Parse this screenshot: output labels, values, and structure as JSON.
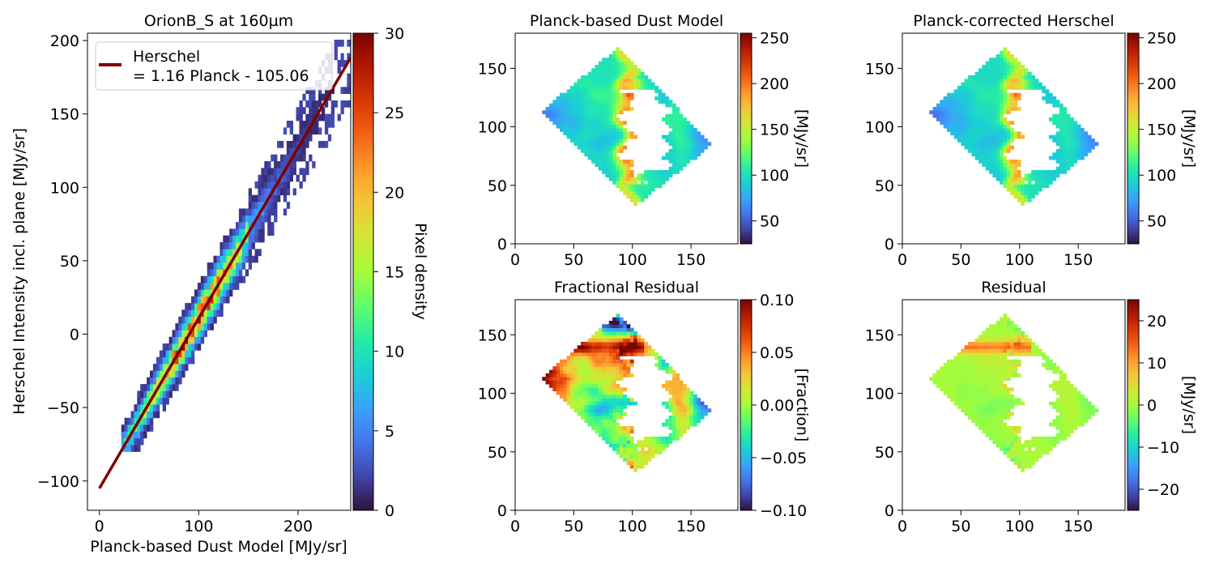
{
  "colormaps": {
    "turbo": [
      "#30123b",
      "#4145ab",
      "#4675ed",
      "#39a2fc",
      "#1bcfd4",
      "#24eca6",
      "#61fc6c",
      "#a4fc3b",
      "#d1e834",
      "#f3c63a",
      "#fe9b2d",
      "#f36315",
      "#d93806",
      "#b11901",
      "#7a0402"
    ]
  },
  "chart_data": [
    {
      "type": "heatmap",
      "subtype": "2d-histogram-with-fit",
      "title": "OrionB_S at 160µm",
      "xlabel": "Planck-based Dust Model [MJy/sr]",
      "ylabel": "Herschel Intensity incl. plane [MJy/sr]",
      "xlim": [
        -12,
        253
      ],
      "ylim": [
        -120,
        205
      ],
      "xticks": [
        0,
        100,
        200
      ],
      "yticks": [
        -100,
        -50,
        0,
        50,
        100,
        150,
        200
      ],
      "xtick_labels": [
        "0",
        "100",
        "200"
      ],
      "ytick_labels": [
        "−100",
        "−50",
        "0",
        "50",
        "100",
        "150",
        "200"
      ],
      "fit": {
        "slope": 1.16,
        "intercept": -105.06,
        "x_range": [
          0,
          253
        ],
        "color": "#7f0000"
      },
      "legend": {
        "location": "upper-left",
        "line1": "Herschel",
        "line2": "= 1.16 Planck - 105.06"
      },
      "colorbar": {
        "label": "Pixel density",
        "range": [
          0,
          30
        ],
        "ticks": [
          "0",
          "5",
          "10",
          "15",
          "20",
          "25",
          "30"
        ]
      }
    },
    {
      "type": "heatmap",
      "subtype": "map",
      "title": "Planck-based Dust Model",
      "xlim": [
        0,
        190
      ],
      "ylim": [
        0,
        180
      ],
      "xticks": [
        "0",
        "50",
        "100",
        "150"
      ],
      "yticks": [
        "0",
        "50",
        "100",
        "150"
      ],
      "colorbar": {
        "label": "[MJy/sr]",
        "range": [
          25,
          255
        ],
        "ticks": [
          "50",
          "100",
          "150",
          "200",
          "250"
        ]
      }
    },
    {
      "type": "heatmap",
      "subtype": "map",
      "title": "Planck-corrected Herschel",
      "xlim": [
        0,
        190
      ],
      "ylim": [
        0,
        180
      ],
      "xticks": [
        "0",
        "50",
        "100",
        "150"
      ],
      "yticks": [
        "0",
        "50",
        "100",
        "150"
      ],
      "colorbar": {
        "label": "[MJy/sr]",
        "range": [
          25,
          255
        ],
        "ticks": [
          "50",
          "100",
          "150",
          "200",
          "250"
        ]
      }
    },
    {
      "type": "heatmap",
      "subtype": "map",
      "title": "Fractional Residual",
      "xlim": [
        0,
        190
      ],
      "ylim": [
        0,
        180
      ],
      "xticks": [
        "0",
        "50",
        "100",
        "150"
      ],
      "yticks": [
        "0",
        "50",
        "100",
        "150"
      ],
      "colorbar": {
        "label": "[Fraction]",
        "range": [
          -0.1,
          0.1
        ],
        "ticks": [
          "−0.10",
          "−0.05",
          "0.00",
          "0.05",
          "0.10"
        ]
      }
    },
    {
      "type": "heatmap",
      "subtype": "map",
      "title": "Residual",
      "xlim": [
        0,
        190
      ],
      "ylim": [
        0,
        180
      ],
      "xticks": [
        "0",
        "50",
        "100",
        "150"
      ],
      "yticks": [
        "0",
        "50",
        "100",
        "150"
      ],
      "colorbar": {
        "label": "[MJy/sr]",
        "range": [
          -25,
          25
        ],
        "ticks": [
          "−20",
          "−10",
          "0",
          "10",
          "20"
        ]
      }
    }
  ]
}
